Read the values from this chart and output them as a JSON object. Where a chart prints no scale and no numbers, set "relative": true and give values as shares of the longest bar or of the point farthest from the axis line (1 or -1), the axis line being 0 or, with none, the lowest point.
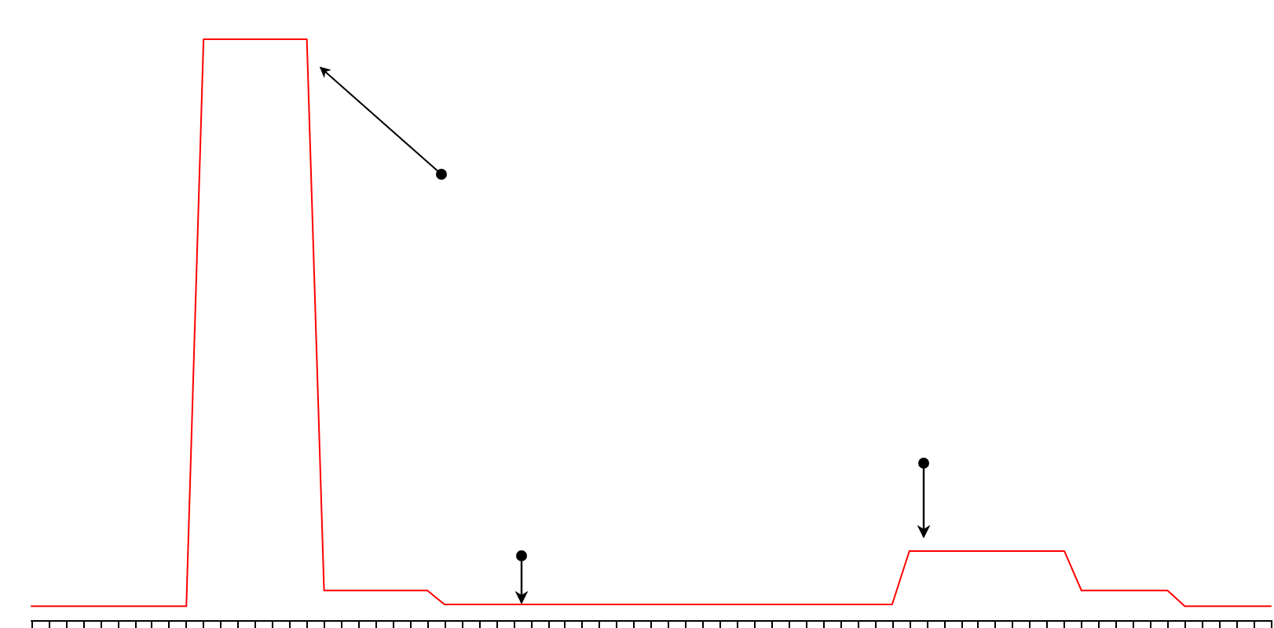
{
  "chart_data": {
    "type": "line",
    "relative": true,
    "tick_labels": false,
    "grid": false,
    "marker": "none",
    "line_style": "solid",
    "categories": [
      null,
      null,
      null,
      null,
      null,
      null,
      null,
      null,
      null,
      null,
      null,
      null,
      null,
      null,
      null,
      null,
      null,
      null,
      null,
      null,
      null,
      null,
      null,
      null,
      null,
      null,
      null,
      null,
      null,
      null,
      null,
      null,
      null,
      null,
      null,
      null,
      null,
      null,
      null,
      null,
      null,
      null,
      null,
      null,
      null,
      null,
      null,
      null,
      null,
      null,
      null,
      null,
      null,
      null,
      null,
      null,
      null,
      null,
      null,
      null,
      null,
      null,
      null,
      null,
      null,
      null,
      null,
      null,
      null,
      null,
      null,
      null,
      null
    ],
    "series": [
      {
        "color": "#ff0000",
        "values": [
          0.024,
          0.024,
          0.024,
          0.024,
          0.024,
          0.024,
          0.024,
          0.024,
          0.024,
          0.024,
          1,
          1,
          1,
          1,
          1,
          1,
          1,
          0.051,
          0.051,
          0.051,
          0.051,
          0.051,
          0.051,
          0.051,
          0.027,
          0.027,
          0.027,
          0.027,
          0.027,
          0.027,
          0.027,
          0.027,
          0.027,
          0.027,
          0.027,
          0.027,
          0.027,
          0.027,
          0.027,
          0.027,
          0.027,
          0.027,
          0.027,
          0.027,
          0.027,
          0.027,
          0.027,
          0.027,
          0.027,
          0.027,
          0.027,
          0.119,
          0.119,
          0.119,
          0.119,
          0.119,
          0.119,
          0.119,
          0.119,
          0.119,
          0.119,
          0.051,
          0.051,
          0.051,
          0.051,
          0.051,
          0.051,
          0.024,
          0.024,
          0.024,
          0.024,
          0.024,
          0.024
        ]
      }
    ]
  }
}
